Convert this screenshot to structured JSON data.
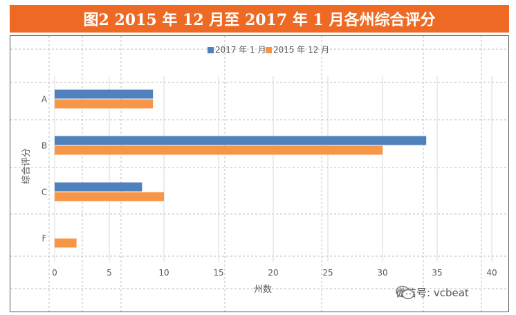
{
  "title": "图2  2015 年 12 月至 2017 年 1 月各州综合评分",
  "watermark": "微信号: vcbeat",
  "colors": {
    "title_bg": "#EE6A24",
    "series_2017": "#4F81BD",
    "series_2015": "#F79646"
  },
  "chart_data": {
    "type": "bar",
    "orientation": "horizontal",
    "title": "",
    "categories": [
      "A",
      "B",
      "C",
      "F"
    ],
    "series": [
      {
        "name": "2017 年 1 月",
        "values": [
          9,
          34,
          8,
          0
        ]
      },
      {
        "name": "2015 年 12 月",
        "values": [
          9,
          30,
          10,
          2
        ]
      }
    ],
    "xlabel": "州数",
    "ylabel": "综合评分",
    "xlim": [
      0,
      40
    ],
    "xticks": [
      0,
      5,
      10,
      15,
      20,
      25,
      30,
      35,
      40
    ],
    "grid": true,
    "legend_position": "top"
  }
}
